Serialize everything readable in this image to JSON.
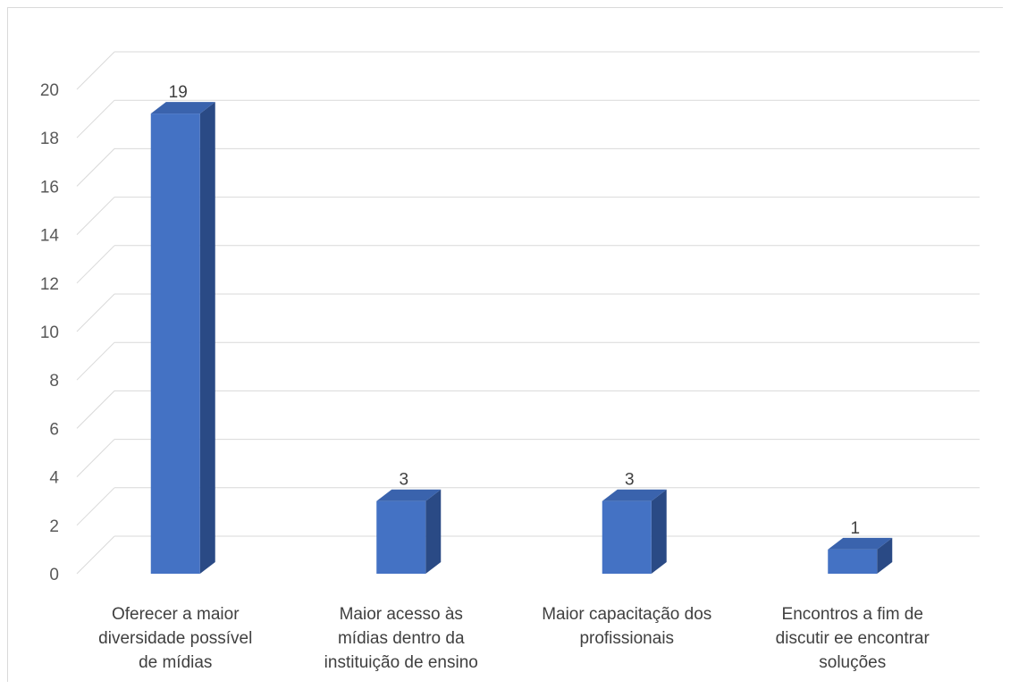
{
  "chart_data": {
    "type": "bar",
    "categories": [
      [
        "Oferecer a maior",
        "diversidade possível",
        "de mídias"
      ],
      [
        "Maior acesso às",
        "mídias dentro da",
        "instituição de ensino"
      ],
      [
        "Maior capacitação dos",
        "profissionais"
      ],
      [
        "Encontros a fim de",
        "discutir ee encontrar",
        "soluções"
      ]
    ],
    "values": [
      19,
      3,
      3,
      1
    ],
    "data_labels": [
      "19",
      "3",
      "3",
      "1"
    ],
    "ylim": [
      0,
      20
    ],
    "yticks": [
      "0",
      "2",
      "4",
      "6",
      "8",
      "10",
      "12",
      "14",
      "16",
      "18",
      "20"
    ],
    "grid": true,
    "style": "3d-column",
    "colors": {
      "front": "#4472c4",
      "side": "#2a4a85",
      "top": "#3a63ad",
      "grid": "#d9d9d9"
    }
  }
}
